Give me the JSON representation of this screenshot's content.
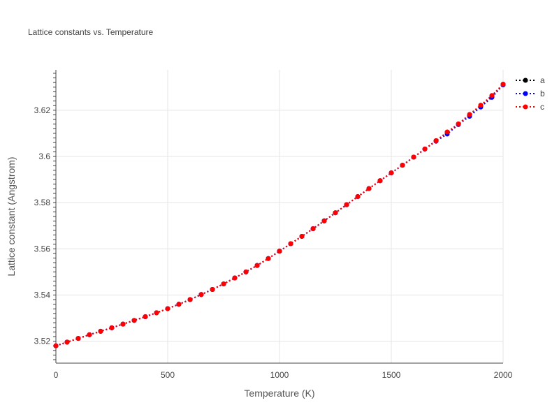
{
  "chart_data": {
    "type": "line",
    "title": "Lattice constants vs. Temperature",
    "xlabel": "Temperature (K)",
    "ylabel": "Lattice constant (Angstrom)",
    "xlim": [
      0,
      2000
    ],
    "ylim": [
      3.5105,
      3.6375
    ],
    "x_ticks": [
      0,
      500,
      1000,
      1500,
      2000
    ],
    "y_ticks": [
      3.52,
      3.54,
      3.56,
      3.58,
      3.6,
      3.62
    ],
    "x_tick_labels": [
      "0",
      "500",
      "1000",
      "1500",
      "2000"
    ],
    "y_tick_labels": [
      "3.52",
      "3.54",
      "3.56",
      "3.58",
      "3.6",
      "3.62"
    ],
    "grid": true,
    "legend_position": "top-right",
    "x": [
      0,
      50,
      100,
      150,
      200,
      250,
      300,
      350,
      400,
      450,
      500,
      550,
      600,
      650,
      700,
      750,
      800,
      850,
      900,
      950,
      1000,
      1050,
      1100,
      1150,
      1200,
      1250,
      1300,
      1350,
      1400,
      1450,
      1500,
      1550,
      1600,
      1650,
      1700,
      1750,
      1800,
      1850,
      1900,
      1950,
      2000
    ],
    "series": [
      {
        "name": "a",
        "color": "#000000",
        "values": [
          3.518,
          3.5196,
          3.5212,
          3.5228,
          3.5243,
          3.5258,
          3.5274,
          3.529,
          3.5306,
          3.5323,
          3.5341,
          3.536,
          3.538,
          3.5402,
          3.5424,
          3.5448,
          3.5474,
          3.55,
          3.5528,
          3.5558,
          3.559,
          3.5622,
          3.5654,
          3.5687,
          3.5721,
          3.5756,
          3.5791,
          3.5826,
          3.5861,
          3.5895,
          3.5929,
          3.5962,
          3.5997,
          3.6032,
          3.6068,
          3.6105,
          3.614,
          3.618,
          3.622,
          3.6262,
          3.6312
        ]
      },
      {
        "name": "b",
        "color": "#0000ff",
        "values": [
          3.518,
          3.5196,
          3.5212,
          3.5228,
          3.5243,
          3.5258,
          3.5274,
          3.529,
          3.5306,
          3.5323,
          3.5341,
          3.536,
          3.538,
          3.5402,
          3.5424,
          3.5448,
          3.5474,
          3.55,
          3.5528,
          3.5558,
          3.559,
          3.5622,
          3.5654,
          3.5687,
          3.5721,
          3.5756,
          3.5791,
          3.5826,
          3.5861,
          3.5895,
          3.5929,
          3.5962,
          3.5997,
          3.6032,
          3.6066,
          3.6097,
          3.6138,
          3.6174,
          3.6214,
          3.6256,
          3.631
        ]
      },
      {
        "name": "c",
        "color": "#ff0000",
        "values": [
          3.518,
          3.5196,
          3.5212,
          3.5228,
          3.5243,
          3.5258,
          3.5274,
          3.529,
          3.5306,
          3.5323,
          3.5341,
          3.536,
          3.538,
          3.5402,
          3.5424,
          3.5448,
          3.5474,
          3.55,
          3.5528,
          3.5558,
          3.559,
          3.5622,
          3.5654,
          3.5687,
          3.5721,
          3.5756,
          3.5791,
          3.5826,
          3.5861,
          3.5895,
          3.5929,
          3.5962,
          3.5997,
          3.6032,
          3.6068,
          3.6106,
          3.6141,
          3.6182,
          3.6222,
          3.6264,
          3.6313
        ]
      }
    ]
  }
}
